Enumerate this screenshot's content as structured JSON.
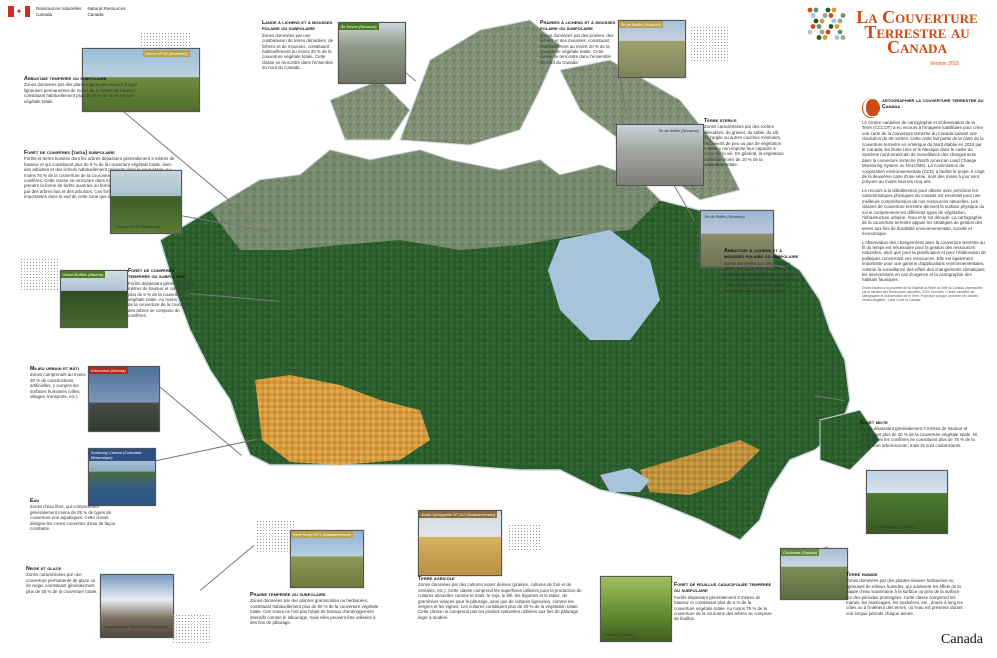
{
  "header": {
    "org_fr": "Ressources naturelles\nCanada",
    "org_en": "Natural Resources\nCanada"
  },
  "title": {
    "line1": "La Couverture",
    "line2": "Terrestre au",
    "line3": "Canada",
    "version": "Version 2015"
  },
  "intro": {
    "drop": "C",
    "heading": "artographier la couverture terrestre au Canada",
    "p1": "Le Centre canadien de cartographie et d'observation de la Terre (CCCOT) a eu recours à l'imagerie satellitaire pour créer une carte de la couverture terrestre du Canada suivant une résolution de 30 mètres. Cette carte fait partie de la carte de la couverture terrestre en Amérique du Nord établie en 2015 par le Canada, les États-Unis et le Mexique dans le cadre du Système nord-américain de surveillance des changements dans la couverture terrestre (North American Land Change Monitoring System ou NALCMS). La Commission de coopération environnementale (CCE) a facilité le projet. Il s'agit de la deuxième carte d'une série, dont des mises à jour sont prévues au moins tous les cinq ans.",
    "p2": "Le recours à la télédétection pour obtenir avec précision les caractéristiques physiques du Canada est essentiel pour une meilleure compréhension de nos ressources naturelles. Les classes de couverture terrestre dérivent la surface physique du sol et comprennent les différents types de végétation, l'infrastructure urbaine, l'eau et le sol dénudé. La cartographie de la couverture terrestre appuie les stratégies de gestion des terres aux fins de durabilité environnementale, sociale et économique.",
    "p3": "L'observation des changements dans la couverture terrestre au fil du temps est nécessaire pour la gestion des ressources naturelles, ainsi que pour la planification et pour l'élaboration de politiques concernant ces ressources. Elle est également importante pour une gamme d'applications environnementales, comme la surveillance des effets des changements climatiques, les interventions en cas d'urgence et la cartographie des habitats fauniques.",
    "credits": "Droits d'auteur à la propriété de Sa Majesté la Reine du chef du Canada, représentée par le ministre des Ressources naturelles, 2019. Données : Centre canadien de cartographie et d'observation de la Terre. Projection conique conforme de Lambert. Version anglaise : Land Cover of Canada."
  },
  "blocks": {
    "arbustive_temperee": {
      "title": "Arbustaie tempérée ou subpolaire",
      "text": "Zones dominées par des plantes ligneuses vivaces à tiges ligneuses permanentes de moins de 5 mètres de hauteur, constituant habituellement plus de 20 % de la couverture végétale totale.",
      "photo": "Dériva Nº 59 (Manitoba)"
    },
    "foret_coniferes_taiga": {
      "title": "Forêt de conifères (taïga) subpolaire",
      "text": "Forêts et terres boisées dont les arbres dépassent généralement 3 mètres de hauteur et qui constituent plus de 5 % de la couverture végétale totale, avec des arbustes et des lichens habituellement présents dans le sous-étage. Au moins 75 % de la couverture de la couronne des arbres se compose de conifères. Cette classe se rencontre dans tout le nord du Canada et peut prendre la forme de forêts ouvertes ou fermées. La couverture est dominée par des arbres bas et des arbustes. Ces forêts sont généralement les plus importantes dans le sud de cette zone que dans le nord.",
      "photo": "Division Nº 23 (Manitoba)"
    },
    "foret_coniferes_temperee": {
      "title": "Forêt de conifères tempérée ou subpolaire",
      "text": "Forêts dépassant généralement 3 mètres de hauteur et constituant plus de 5 % de la couverture végétale totale. Au moins 75 % de la couverture de la couronne des arbres se compose de conifères.",
      "photo": "Wood Buffalo (Alberta)"
    },
    "milieu_urbain": {
      "title": "Milieu urbain et bâti",
      "text": "Zones comprenant au moins 30 % de constructions artificielles, y compris les surfaces humaines (villes, villages, transports, etc.).",
      "photo": "Edmonton (Alberta)"
    },
    "eau": {
      "title": "Eau",
      "text": "Zones d'eau libre, qui comprennent généralement moins de 25 % de types de couverture non aquatiques. Cette classe désigne les zones couvertes d'eau de façon constante.",
      "photo": "Kootenay Central (Colombie-Britannique)"
    },
    "neige_glace": {
      "title": "Neige et glace",
      "text": "Zones caractérisées par une couverture permanente de glace ou de neige, constituant généralement plus de 25 % de la couverture totale.",
      "photo": "Improvement District Nº 9 (Alberta)"
    },
    "prairie_temperee": {
      "title": "Prairie tempérée ou subpolaire",
      "text": "Zones dominées par des plantes graminoïdes ou herbacées, constituant habituellement plus de 80 % de la couverture végétale totale. Ces zones ne font pas l'objet de travaux d'aménagement intensifs comme le labourage, mais elles peuvent être utilisées à des fins de pâturage.",
      "photo": "Kent Rusty Nº 1 (Saskatchewan)"
    },
    "terre_agricole": {
      "title": "Terre agricole",
      "text": "Zones dominées par des cultures assez denses (prairies, cultures de foin et de céréales, etc.). Cette classe comprend les superficies utilisées pour la production de cultures annuelles comme le maïs, le soja, le blé, les légumes et le tabac, de graminées vivaces pour le pâturage, ainsi que de cultures ligneuses, comme les vergers et les vignes. Les cultures constituent plus de 20 % de la végétation totale. Cette classe ne comprend pas les prairies naturelles utilisées aux fins de pâturage léger à modéré.",
      "photo": "South Qu'Appelle Nº 157 (Saskatchewan)"
    },
    "foret_feuillus": {
      "title": "Forêt de feuillus caducifoliée tempérée ou subpolaire",
      "text": "Forêts dépassant généralement 3 mètres de hauteur et constituant plus de 5 % de la couverture végétale totale. Au moins 75 % de la couverture de la couronne des arbres se compose de feuillus.",
      "photo": "Halton (Ontario)"
    },
    "terre_humide": {
      "title": "Terre humide",
      "text": "Zones dominées par des plantes vivaces herbacées ou ligneuses de milieux humides, qui subissent les effets de la nappe d'eau souterraine à la surface ou près de la surface sur des périodes prolongées. Cette classe comprend les marais, les marécages, les tourbières, etc., doués à long les côtes ou à l'intérieur des terres, où l'eau est présente durant une longue période chaque année.",
      "photo": "Cochrane (Ontario)"
    },
    "foret_mixte": {
      "title": "Forêt mixte",
      "text": "Forêts dépassant généralement 3 mètres de hauteur et constituant plus de 20 % de la couverture végétale totale. Ni le feuillus ni les conifères ne constituent plus de 75 % de la couverture arborescente, mais ils sont codominants.",
      "photo": "Drummington (Québec)"
    },
    "lande_polaire": {
      "title": "Lande à lichens et à mousses polaire ou subpolaire",
      "text": "Zones dominées par une combinaison de terres dénudées, de lichens et de mousses, constituant habituellement au moins 20 % de la couverture végétale totale. Cette classe se rencontre dans l'ensemble du nord du Canada.",
      "photo": "Île Devon (Nunavut)"
    },
    "prairie_polaire": {
      "title": "Prairies à lichens et à mousses polaire ou subpolaire",
      "text": "Zones dominées par des prairies, des lichens et des mousses, constituant habituellement au moins 20 % de la couverture végétale totale. Cette classe se rencontre dans l'ensemble du nord du Canada.",
      "photo": "Île de Baffin (Nunavut)"
    },
    "terre_sterile": {
      "title": "Terre stérile",
      "text": "Zones caractérisées par des roches dénudées, du gravier, du sable, du silt, de l'argile ou autres couches minérales, recouverts de peu ou pas de végétation « verte » non-importe leur capacité à accueillir la vie. En général, la végétation constitue moins de 10 % de la couverture totale.",
      "photo": "Île de Baffin (Nunavut)"
    },
    "arbustaie_lichens": {
      "title": "Arbustaie à lichens et à mousses polaire ou subpolaire",
      "text": "Zones dominées par des arbustes nains, des lichens et des mousses, constituant habituellement au moins 20 % de la couverture végétale totale. Cette classe se rencontre dans l'ensemble du nord du Canada.",
      "photo": "Île de Baffin (Nunavut)"
    }
  },
  "footer": {
    "wordmark": "Canada"
  },
  "colors": {
    "accent": "#d04a12",
    "water": "#a8c4dd",
    "forest": "#245a2a",
    "agri": "#d89a3c",
    "wetland": "#6d8e6a"
  }
}
